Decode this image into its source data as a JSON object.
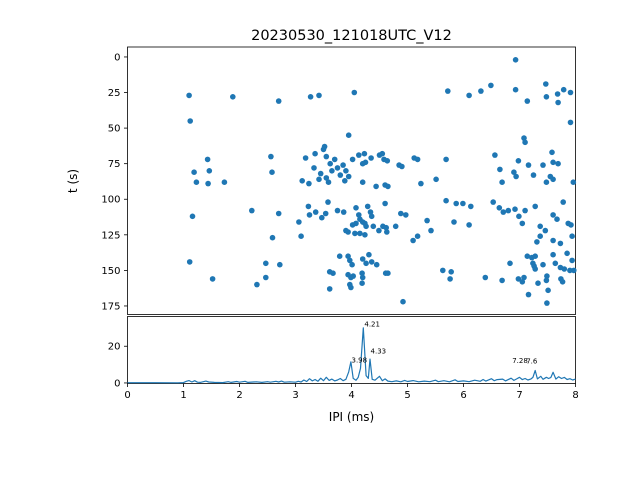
{
  "figure": {
    "title": "20230530_121018UTC_V12",
    "background": "#ffffff",
    "accent_color": "#1f77b4"
  },
  "chart_data": [
    {
      "type": "scatter",
      "title": "20230530_121018UTC_V12",
      "xlabel": "",
      "ylabel": "t (s)",
      "xlim": [
        0,
        8
      ],
      "ylim": [
        181,
        -7
      ],
      "y_inverted": true,
      "grid": false,
      "yticks": [
        0,
        25,
        50,
        75,
        100,
        125,
        150,
        175
      ],
      "marker_color": "#1f77b4",
      "points": [
        [
          6.93,
          2
        ],
        [
          1.1,
          27
        ],
        [
          1.88,
          28
        ],
        [
          2.7,
          31
        ],
        [
          3.27,
          28
        ],
        [
          3.42,
          27
        ],
        [
          4.05,
          25
        ],
        [
          5.72,
          24
        ],
        [
          6.1,
          27
        ],
        [
          6.31,
          24
        ],
        [
          6.49,
          20
        ],
        [
          6.93,
          23
        ],
        [
          7.14,
          31
        ],
        [
          7.47,
          19
        ],
        [
          7.48,
          28
        ],
        [
          7.68,
          26
        ],
        [
          7.79,
          23
        ],
        [
          7.91,
          25
        ],
        [
          7.69,
          32
        ],
        [
          1.12,
          45
        ],
        [
          3.95,
          55
        ],
        [
          7.91,
          46
        ],
        [
          7.08,
          57
        ],
        [
          7.1,
          60
        ],
        [
          1.43,
          72
        ],
        [
          1.46,
          80
        ],
        [
          1.19,
          81
        ],
        [
          1.23,
          88
        ],
        [
          1.44,
          89
        ],
        [
          1.73,
          88
        ],
        [
          2.56,
          70
        ],
        [
          2.58,
          81
        ],
        [
          3.18,
          71
        ],
        [
          3.12,
          87
        ],
        [
          3.24,
          89
        ],
        [
          3.59,
          88
        ],
        [
          3.35,
          68
        ],
        [
          3.5,
          65
        ],
        [
          3.52,
          63
        ],
        [
          3.55,
          70
        ],
        [
          3.62,
          75
        ],
        [
          3.65,
          80
        ],
        [
          3.7,
          72
        ],
        [
          3.75,
          78
        ],
        [
          3.8,
          83
        ],
        [
          3.85,
          76
        ],
        [
          3.9,
          80
        ],
        [
          3.95,
          84
        ],
        [
          3.45,
          82
        ],
        [
          3.55,
          85
        ],
        [
          3.33,
          78
        ],
        [
          3.42,
          86
        ],
        [
          3.88,
          87
        ],
        [
          4.02,
          72
        ],
        [
          4.13,
          69
        ],
        [
          4.23,
          68
        ],
        [
          4.25,
          74
        ],
        [
          4.2,
          75
        ],
        [
          4.35,
          71
        ],
        [
          4.5,
          69
        ],
        [
          4.55,
          68
        ],
        [
          4.58,
          72
        ],
        [
          4.64,
          73
        ],
        [
          4.85,
          76
        ],
        [
          4.9,
          77
        ],
        [
          5.12,
          71
        ],
        [
          5.18,
          72
        ],
        [
          5.69,
          72
        ],
        [
          4.2,
          88
        ],
        [
          4.44,
          91
        ],
        [
          4.6,
          90
        ],
        [
          4.65,
          91
        ],
        [
          5.24,
          89
        ],
        [
          5.51,
          86
        ],
        [
          6.56,
          69
        ],
        [
          7.58,
          67
        ],
        [
          6.98,
          73
        ],
        [
          6.65,
          79
        ],
        [
          7.16,
          76
        ],
        [
          7.42,
          76
        ],
        [
          7.6,
          74
        ],
        [
          7.69,
          75
        ],
        [
          6.9,
          81
        ],
        [
          6.94,
          84
        ],
        [
          7.25,
          83
        ],
        [
          7.55,
          84
        ],
        [
          7.6,
          86
        ],
        [
          6.69,
          88
        ],
        [
          7.48,
          88
        ],
        [
          7.96,
          88
        ],
        [
          1.16,
          112
        ],
        [
          2.22,
          108
        ],
        [
          2.7,
          110
        ],
        [
          3.06,
          116
        ],
        [
          3.23,
          105
        ],
        [
          3.25,
          111
        ],
        [
          3.36,
          109
        ],
        [
          3.47,
          113
        ],
        [
          3.54,
          110
        ],
        [
          3.58,
          102
        ],
        [
          3.75,
          108
        ],
        [
          3.86,
          109
        ],
        [
          3.9,
          122
        ],
        [
          2.59,
          127
        ],
        [
          3.1,
          126
        ],
        [
          4.08,
          106
        ],
        [
          4.29,
          105
        ],
        [
          4.34,
          109
        ],
        [
          4.36,
          112
        ],
        [
          4.13,
          111
        ],
        [
          4.15,
          114
        ],
        [
          4.2,
          116
        ],
        [
          4.24,
          117
        ],
        [
          4.08,
          117
        ],
        [
          4.02,
          118
        ],
        [
          4.26,
          119
        ],
        [
          4.39,
          119
        ],
        [
          4.56,
          119
        ],
        [
          4.62,
          120
        ],
        [
          4.79,
          119
        ],
        [
          4.88,
          110
        ],
        [
          4.97,
          111
        ],
        [
          4.6,
          103
        ],
        [
          5.35,
          115
        ],
        [
          5.42,
          122
        ],
        [
          5.18,
          126
        ],
        [
          5.1,
          129
        ],
        [
          5.69,
          101
        ],
        [
          5.87,
          103
        ],
        [
          5.99,
          103
        ],
        [
          6.13,
          105
        ],
        [
          5.83,
          116
        ],
        [
          6.1,
          118
        ],
        [
          6.53,
          102
        ],
        [
          6.64,
          106
        ],
        [
          6.71,
          109
        ],
        [
          6.8,
          108
        ],
        [
          6.92,
          107
        ],
        [
          7.1,
          108
        ],
        [
          7.28,
          105
        ],
        [
          6.99,
          112
        ],
        [
          7.05,
          117
        ],
        [
          7.6,
          111
        ],
        [
          7.67,
          114
        ],
        [
          7.78,
          102
        ],
        [
          7.37,
          119
        ],
        [
          7.46,
          122
        ],
        [
          7.87,
          117
        ],
        [
          7.92,
          118
        ],
        [
          7.37,
          126
        ],
        [
          7.94,
          126
        ],
        [
          3.94,
          123
        ],
        [
          4.06,
          124
        ],
        [
          4.15,
          124
        ],
        [
          4.24,
          125
        ],
        [
          4.49,
          122
        ],
        [
          4.63,
          123
        ],
        [
          1.11,
          144
        ],
        [
          1.52,
          156
        ],
        [
          2.47,
          145
        ],
        [
          2.72,
          146
        ],
        [
          2.47,
          155
        ],
        [
          2.31,
          160
        ],
        [
          3.79,
          140
        ],
        [
          3.94,
          140
        ],
        [
          3.97,
          143
        ],
        [
          4.01,
          146
        ],
        [
          4.2,
          142
        ],
        [
          4.31,
          139
        ],
        [
          4.36,
          144
        ],
        [
          4.26,
          145
        ],
        [
          4.45,
          146
        ],
        [
          3.61,
          151
        ],
        [
          3.67,
          152
        ],
        [
          3.94,
          153
        ],
        [
          3.99,
          155
        ],
        [
          4.03,
          154
        ],
        [
          4.19,
          152
        ],
        [
          4.2,
          155
        ],
        [
          4.61,
          152
        ],
        [
          4.65,
          152
        ],
        [
          4.19,
          159
        ],
        [
          3.97,
          160
        ],
        [
          3.99,
          162
        ],
        [
          3.61,
          163
        ],
        [
          5.63,
          150
        ],
        [
          5.78,
          151
        ],
        [
          5.76,
          156
        ],
        [
          6.39,
          155
        ],
        [
          6.83,
          145
        ],
        [
          7.14,
          140
        ],
        [
          7.22,
          141
        ],
        [
          7.28,
          140
        ],
        [
          7.24,
          145
        ],
        [
          7.26,
          147
        ],
        [
          7.28,
          149
        ],
        [
          7.42,
          146
        ],
        [
          7.6,
          139
        ],
        [
          7.64,
          145
        ],
        [
          7.85,
          138
        ],
        [
          7.94,
          143
        ],
        [
          7.73,
          148
        ],
        [
          7.8,
          149
        ],
        [
          7.9,
          150
        ],
        [
          7.97,
          150
        ],
        [
          7.31,
          130
        ],
        [
          7.6,
          129
        ],
        [
          7.73,
          131
        ],
        [
          6.69,
          157
        ],
        [
          6.98,
          156
        ],
        [
          7.05,
          158
        ],
        [
          7.08,
          155
        ],
        [
          7.33,
          159
        ],
        [
          7.48,
          157
        ],
        [
          7.49,
          154
        ],
        [
          7.74,
          156
        ],
        [
          7.77,
          158
        ],
        [
          7.51,
          164
        ],
        [
          7.16,
          167
        ],
        [
          7.49,
          173
        ],
        [
          4.92,
          172
        ]
      ]
    },
    {
      "type": "line",
      "title": "",
      "xlabel": "IPI (ms)",
      "ylabel": "",
      "xlim": [
        0,
        8
      ],
      "ylim": [
        0,
        36
      ],
      "grid": false,
      "xticks": [
        0,
        1,
        2,
        3,
        4,
        5,
        6,
        7,
        8
      ],
      "yticks": [
        0,
        20
      ],
      "line_color": "#1f77b4",
      "x": [
        0,
        0.5,
        0.9,
        1.0,
        1.05,
        1.1,
        1.15,
        1.2,
        1.25,
        1.3,
        1.4,
        1.45,
        1.55,
        1.7,
        1.8,
        1.85,
        1.95,
        2.0,
        2.1,
        2.15,
        2.3,
        2.4,
        2.5,
        2.55,
        2.65,
        2.7,
        2.75,
        2.8,
        2.9,
        3.0,
        3.05,
        3.1,
        3.15,
        3.2,
        3.25,
        3.3,
        3.35,
        3.4,
        3.45,
        3.5,
        3.55,
        3.6,
        3.65,
        3.7,
        3.75,
        3.8,
        3.85,
        3.9,
        3.95,
        3.99,
        4.03,
        4.08,
        4.12,
        4.16,
        4.21,
        4.26,
        4.3,
        4.33,
        4.37,
        4.42,
        4.46,
        4.5,
        4.55,
        4.6,
        4.65,
        4.72,
        4.8,
        4.88,
        4.95,
        5.0,
        5.1,
        5.2,
        5.3,
        5.4,
        5.5,
        5.55,
        5.65,
        5.75,
        5.85,
        5.9,
        6.0,
        6.1,
        6.2,
        6.3,
        6.35,
        6.4,
        6.5,
        6.55,
        6.6,
        6.7,
        6.75,
        6.85,
        6.9,
        6.95,
        7.0,
        7.05,
        7.1,
        7.15,
        7.2,
        7.24,
        7.28,
        7.32,
        7.38,
        7.42,
        7.48,
        7.52,
        7.56,
        7.6,
        7.65,
        7.7,
        7.75,
        7.8,
        7.85,
        7.9,
        7.95,
        8.0
      ],
      "y": [
        0.15,
        0.15,
        0.1,
        0.2,
        0.9,
        1.3,
        0.5,
        1.2,
        0.4,
        0.3,
        1.0,
        0.5,
        0.3,
        0.2,
        0.7,
        0.3,
        0.8,
        0.4,
        0.9,
        0.3,
        0.6,
        0.3,
        0.7,
        0.4,
        0.9,
        0.5,
        1.0,
        0.4,
        0.6,
        0.4,
        0.9,
        0.5,
        1.6,
        0.8,
        2.3,
        1.1,
        1.9,
        0.9,
        2.6,
        1.2,
        3.1,
        1.4,
        2.1,
        1.1,
        1.6,
        2.4,
        1.2,
        2.0,
        6.0,
        11.5,
        2.5,
        1.5,
        3.0,
        8.0,
        30.0,
        4.0,
        2.5,
        13.0,
        2.0,
        1.5,
        2.6,
        3.6,
        1.2,
        2.2,
        1.0,
        0.7,
        1.1,
        0.6,
        1.4,
        0.8,
        1.3,
        0.6,
        1.0,
        0.7,
        1.5,
        0.7,
        1.2,
        0.6,
        1.7,
        0.8,
        1.1,
        0.7,
        1.5,
        0.9,
        1.9,
        1.0,
        2.3,
        1.2,
        1.8,
        2.1,
        1.1,
        2.6,
        1.4,
        2.2,
        3.1,
        1.8,
        2.4,
        1.6,
        2.1,
        3.0,
        6.8,
        2.2,
        3.6,
        2.0,
        3.1,
        2.4,
        3.0,
        5.8,
        2.1,
        3.4,
        2.4,
        3.0,
        1.9,
        2.3,
        1.6,
        2.1
      ],
      "annotations": [
        {
          "label": "3.98",
          "x": 4.0,
          "y": 11.2
        },
        {
          "label": "4.21",
          "x": 4.23,
          "y": 30.8
        },
        {
          "label": "4.33",
          "x": 4.34,
          "y": 16.0
        },
        {
          "label": "7.28",
          "x": 6.87,
          "y": 11.0
        },
        {
          "label": "7.6",
          "x": 7.12,
          "y": 10.5
        }
      ]
    }
  ]
}
